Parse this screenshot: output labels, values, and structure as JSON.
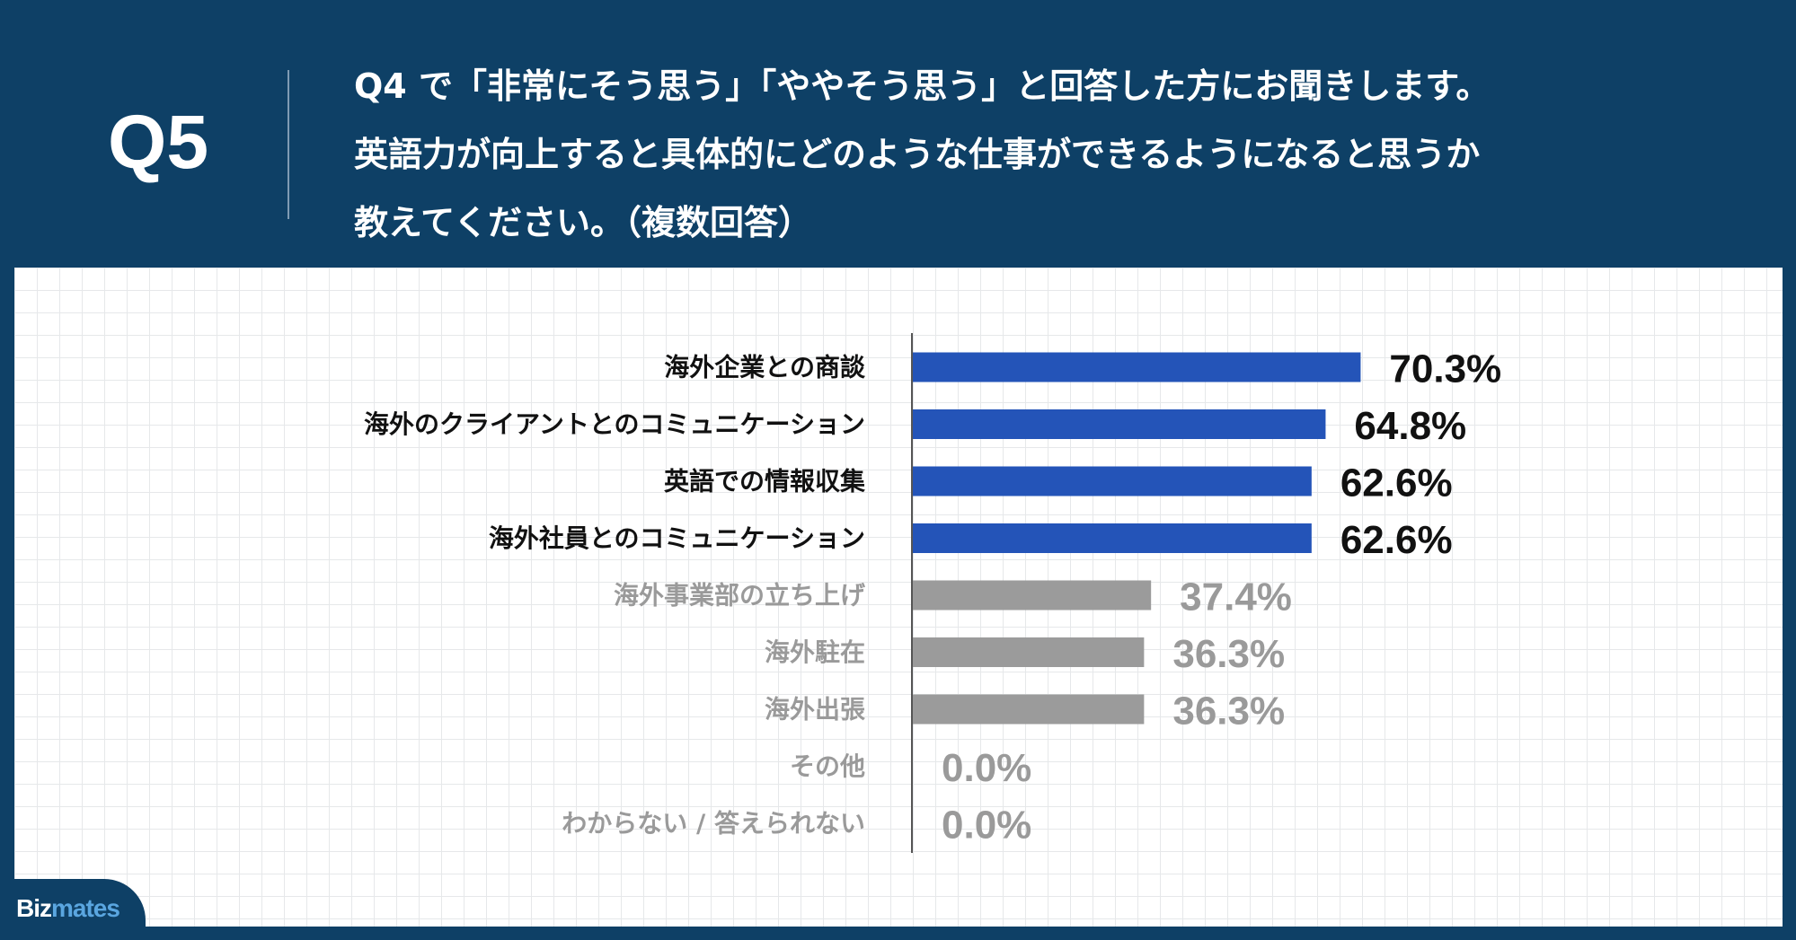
{
  "header": {
    "q_label": "Q5",
    "question_lines": [
      "Q4 で「非常にそう思う」「ややそう思う」と回答した方にお聞きします。",
      "英語力が向上すると具体的にどのような仕事ができるようになると思うか",
      "教えてください。（複数回答）"
    ]
  },
  "brand": {
    "name_part1": "Biz",
    "name_part2": "mates"
  },
  "colors": {
    "header_bg": "#0e4066",
    "highlight_bar": "#2454b8",
    "muted_bar": "#9b9b9b",
    "highlight_text": "#111111",
    "muted_text": "#9a9a9a"
  },
  "chart_data": {
    "type": "bar",
    "orientation": "horizontal",
    "categories": [
      "海外企業との商談",
      "海外のクライアントとのコミュニケーション",
      "英語での情報収集",
      "海外社員とのコミュニケーション",
      "海外事業部の立ち上げ",
      "海外駐在",
      "海外出張",
      "その他",
      "わからない / 答えられない"
    ],
    "values": [
      70.3,
      64.8,
      62.6,
      62.6,
      37.4,
      36.3,
      36.3,
      0.0,
      0.0
    ],
    "value_labels": [
      "70.3%",
      "64.8%",
      "62.6%",
      "62.6%",
      "37.4%",
      "36.3%",
      "36.3%",
      "0.0%",
      "0.0%"
    ],
    "highlighted": [
      true,
      true,
      true,
      true,
      false,
      false,
      false,
      false,
      false
    ],
    "unit": "%",
    "xlim": [
      0,
      100
    ],
    "title": "",
    "xlabel": "",
    "ylabel": "",
    "grid": true,
    "legend": "none"
  }
}
